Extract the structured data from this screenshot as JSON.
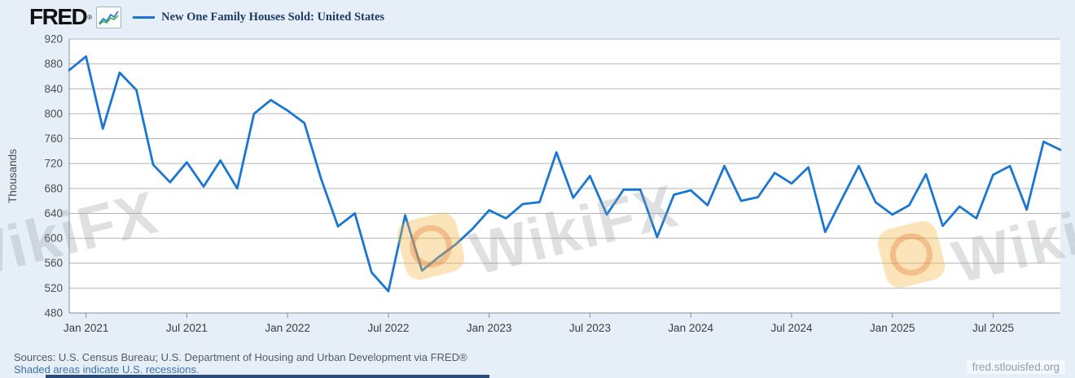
{
  "header": {
    "logo_text": "FRED",
    "registered_mark": "®",
    "legend_label": "New One Family Houses Sold: United States"
  },
  "chart_data": {
    "type": "line",
    "title": "New One Family Houses Sold: United States",
    "ylabel": "Thousands",
    "ylim": [
      480,
      920
    ],
    "ytick_step": 40,
    "grid": "horizontal",
    "legend_position": "top-left",
    "line_color": "#1b76d2",
    "x_tick_labels": [
      "Jan 2021",
      "Jul 2021",
      "Jan 2022",
      "Jul 2022",
      "Jan 2023",
      "Jul 2023",
      "Jan 2024",
      "Jul 2024",
      "Jan 2025",
      "Jul 2025"
    ],
    "x_tick_indices": [
      1,
      7,
      13,
      19,
      25,
      31,
      37,
      43,
      49,
      55
    ],
    "x": [
      "2020-12",
      "2021-01",
      "2021-02",
      "2021-03",
      "2021-04",
      "2021-05",
      "2021-06",
      "2021-07",
      "2021-08",
      "2021-09",
      "2021-10",
      "2021-11",
      "2021-12",
      "2022-01",
      "2022-02",
      "2022-03",
      "2022-04",
      "2022-05",
      "2022-06",
      "2022-07",
      "2022-08",
      "2022-09",
      "2022-10",
      "2022-11",
      "2022-12",
      "2023-01",
      "2023-02",
      "2023-03",
      "2023-04",
      "2023-05",
      "2023-06",
      "2023-07",
      "2023-08",
      "2023-09",
      "2023-10",
      "2023-11",
      "2023-12",
      "2024-01",
      "2024-02",
      "2024-03",
      "2024-04",
      "2024-05",
      "2024-06",
      "2024-07",
      "2024-08",
      "2024-09",
      "2024-10",
      "2024-11",
      "2024-12",
      "2025-01",
      "2025-02",
      "2025-03",
      "2025-04",
      "2025-05",
      "2025-06",
      "2025-07",
      "2025-08",
      "2025-09",
      "2025-10",
      "2025-11"
    ],
    "values": [
      870,
      892,
      776,
      866,
      838,
      718,
      690,
      722,
      683,
      725,
      680,
      800,
      822,
      805,
      785,
      695,
      619,
      640,
      545,
      515,
      637,
      548,
      570,
      590,
      615,
      645,
      632,
      655,
      658,
      738,
      665,
      700,
      638,
      678,
      678,
      602,
      670,
      677,
      653,
      716,
      660,
      666,
      705,
      688,
      714,
      610,
      663,
      716,
      658,
      638,
      653,
      703,
      620,
      651,
      632,
      702,
      716,
      646,
      755,
      742
    ]
  },
  "footer": {
    "sources": "Sources: U.S. Census Bureau; U.S. Department of Housing and Urban Development via FRED®",
    "recessions_note": "Shaded areas indicate U.S. recessions.",
    "site": "fred.stlouisfed.org"
  },
  "watermark": {
    "text": "WikiFX"
  }
}
